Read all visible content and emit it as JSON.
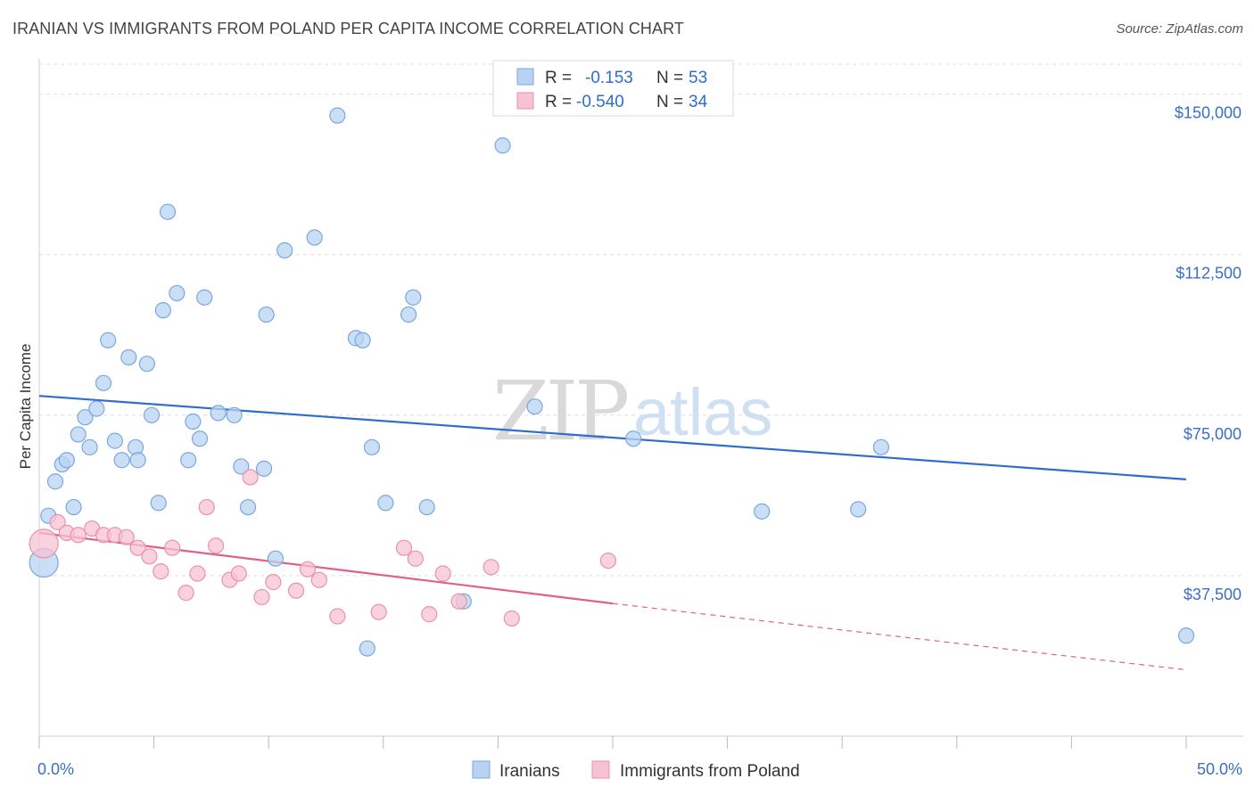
{
  "title": "IRANIAN VS IMMIGRANTS FROM POLAND PER CAPITA INCOME CORRELATION CHART",
  "source": "Source: ZipAtlas.com",
  "watermark": {
    "zip": "ZIP",
    "atlas": "atlas"
  },
  "colors": {
    "iranians_fill": "#b8d3f2",
    "iranians_stroke": "#7aa8dd",
    "iranians_line": "#2e6ccf",
    "poland_fill": "#f7c3d3",
    "poland_stroke": "#e892ad",
    "poland_line": "#e0608c",
    "grid": "#dddddd",
    "tick_label": "#3b6fc4"
  },
  "legend_top": {
    "rows": [
      {
        "r_label": "R =",
        "r_value": "-0.153",
        "n_label": "N =",
        "n_value": "53",
        "series": "iranians"
      },
      {
        "r_label": "R =",
        "r_value": "-0.540",
        "n_label": "N =",
        "n_value": "34",
        "series": "poland"
      }
    ]
  },
  "chart_data": {
    "type": "scatter",
    "xlabel": "",
    "ylabel": "Per Capita Income",
    "xlim": [
      0,
      50
    ],
    "ylim": [
      0,
      157000
    ],
    "x_tick_labels": [
      "0.0%",
      "50.0%"
    ],
    "y_ticks": [
      37500,
      75000,
      112500,
      150000
    ],
    "y_tick_labels": [
      "$37,500",
      "$75,000",
      "$112,500",
      "$150,000"
    ],
    "grid": true,
    "legend_position": "bottom-center",
    "series": [
      {
        "name": "Iranians",
        "key": "iranians",
        "trend": {
          "x": [
            0,
            50
          ],
          "y": [
            79500,
            60000
          ],
          "dashed_from": null
        },
        "points": [
          {
            "x": 0.2,
            "y": 40500,
            "size": "big"
          },
          {
            "x": 0.4,
            "y": 51500
          },
          {
            "x": 0.7,
            "y": 59500
          },
          {
            "x": 1.0,
            "y": 63500
          },
          {
            "x": 1.2,
            "y": 64500
          },
          {
            "x": 1.5,
            "y": 53500
          },
          {
            "x": 1.7,
            "y": 70500
          },
          {
            "x": 2.0,
            "y": 74500
          },
          {
            "x": 2.2,
            "y": 67500
          },
          {
            "x": 2.5,
            "y": 76500
          },
          {
            "x": 2.8,
            "y": 82500
          },
          {
            "x": 3.0,
            "y": 92500
          },
          {
            "x": 3.3,
            "y": 69000
          },
          {
            "x": 3.6,
            "y": 64500
          },
          {
            "x": 3.9,
            "y": 88500
          },
          {
            "x": 4.2,
            "y": 67500
          },
          {
            "x": 4.3,
            "y": 64500
          },
          {
            "x": 4.7,
            "y": 87000
          },
          {
            "x": 4.9,
            "y": 75000
          },
          {
            "x": 5.2,
            "y": 54500
          },
          {
            "x": 5.4,
            "y": 99500
          },
          {
            "x": 5.6,
            "y": 122500
          },
          {
            "x": 6.0,
            "y": 103500
          },
          {
            "x": 6.5,
            "y": 64500
          },
          {
            "x": 6.7,
            "y": 73500
          },
          {
            "x": 7.0,
            "y": 69500
          },
          {
            "x": 7.2,
            "y": 102500
          },
          {
            "x": 7.8,
            "y": 75500
          },
          {
            "x": 8.5,
            "y": 75000
          },
          {
            "x": 8.8,
            "y": 63000
          },
          {
            "x": 9.1,
            "y": 53500
          },
          {
            "x": 9.8,
            "y": 62500
          },
          {
            "x": 9.9,
            "y": 98500
          },
          {
            "x": 10.3,
            "y": 41500
          },
          {
            "x": 10.7,
            "y": 113500
          },
          {
            "x": 12.0,
            "y": 116500
          },
          {
            "x": 13.0,
            "y": 145000
          },
          {
            "x": 13.8,
            "y": 93000
          },
          {
            "x": 14.1,
            "y": 92500
          },
          {
            "x": 14.3,
            "y": 20500
          },
          {
            "x": 14.5,
            "y": 67500
          },
          {
            "x": 15.1,
            "y": 54500
          },
          {
            "x": 16.1,
            "y": 98500
          },
          {
            "x": 16.3,
            "y": 102500
          },
          {
            "x": 16.9,
            "y": 53500
          },
          {
            "x": 18.5,
            "y": 31500
          },
          {
            "x": 20.2,
            "y": 138000
          },
          {
            "x": 21.6,
            "y": 77000
          },
          {
            "x": 25.9,
            "y": 69500
          },
          {
            "x": 31.5,
            "y": 52500
          },
          {
            "x": 35.7,
            "y": 53000
          },
          {
            "x": 36.7,
            "y": 67500
          },
          {
            "x": 50.0,
            "y": 23500
          }
        ]
      },
      {
        "name": "Immigrants from Poland",
        "key": "poland",
        "trend": {
          "x": [
            0,
            25,
            50
          ],
          "y": [
            47500,
            31000,
            15500
          ],
          "dashed_from": 25
        },
        "points": [
          {
            "x": 0.2,
            "y": 45000,
            "size": "big"
          },
          {
            "x": 0.8,
            "y": 50000
          },
          {
            "x": 1.2,
            "y": 47500
          },
          {
            "x": 1.7,
            "y": 47000
          },
          {
            "x": 2.3,
            "y": 48500
          },
          {
            "x": 2.8,
            "y": 47000
          },
          {
            "x": 3.3,
            "y": 47000
          },
          {
            "x": 3.8,
            "y": 46500
          },
          {
            "x": 4.3,
            "y": 44000
          },
          {
            "x": 4.8,
            "y": 42000
          },
          {
            "x": 5.3,
            "y": 38500
          },
          {
            "x": 5.8,
            "y": 44000
          },
          {
            "x": 6.4,
            "y": 33500
          },
          {
            "x": 6.9,
            "y": 38000
          },
          {
            "x": 7.3,
            "y": 53500
          },
          {
            "x": 7.7,
            "y": 44500
          },
          {
            "x": 8.3,
            "y": 36500
          },
          {
            "x": 8.7,
            "y": 38000
          },
          {
            "x": 9.2,
            "y": 60500
          },
          {
            "x": 9.7,
            "y": 32500
          },
          {
            "x": 10.2,
            "y": 36000
          },
          {
            "x": 11.2,
            "y": 34000
          },
          {
            "x": 11.7,
            "y": 39000
          },
          {
            "x": 12.2,
            "y": 36500
          },
          {
            "x": 13.0,
            "y": 28000
          },
          {
            "x": 14.8,
            "y": 29000
          },
          {
            "x": 15.9,
            "y": 44000
          },
          {
            "x": 16.4,
            "y": 41500
          },
          {
            "x": 17.0,
            "y": 28500
          },
          {
            "x": 17.6,
            "y": 38000
          },
          {
            "x": 18.3,
            "y": 31500
          },
          {
            "x": 19.7,
            "y": 39500
          },
          {
            "x": 20.6,
            "y": 27500
          },
          {
            "x": 24.8,
            "y": 41000
          }
        ]
      }
    ]
  }
}
